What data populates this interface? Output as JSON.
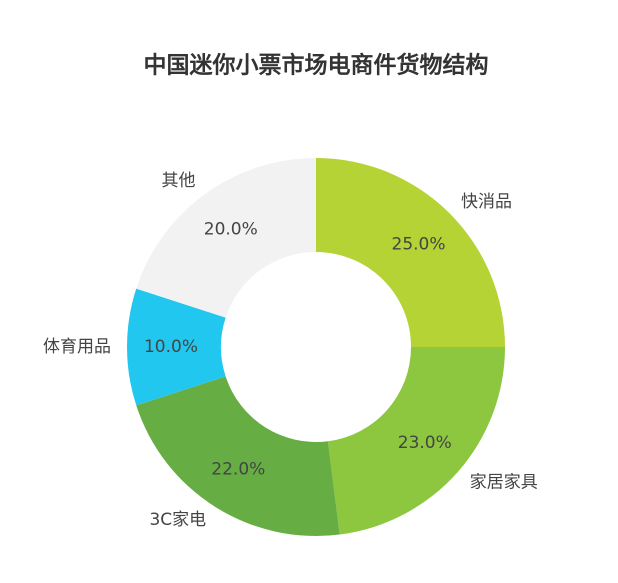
{
  "chart_data": {
    "type": "donut",
    "title": "中国迷你小票市场电商件货物结构",
    "categories": [
      "快消品",
      "家居家具",
      "3C家电",
      "体育用品",
      "其他"
    ],
    "values": [
      25,
      23,
      22,
      10,
      20
    ],
    "value_labels": [
      "25.0%",
      "23.0%",
      "22.0%",
      "10.0%",
      "20.0%"
    ],
    "colors": [
      "#b5d334",
      "#8dc63f",
      "#66ad44",
      "#22c7f0",
      "#f2f2f2"
    ]
  }
}
